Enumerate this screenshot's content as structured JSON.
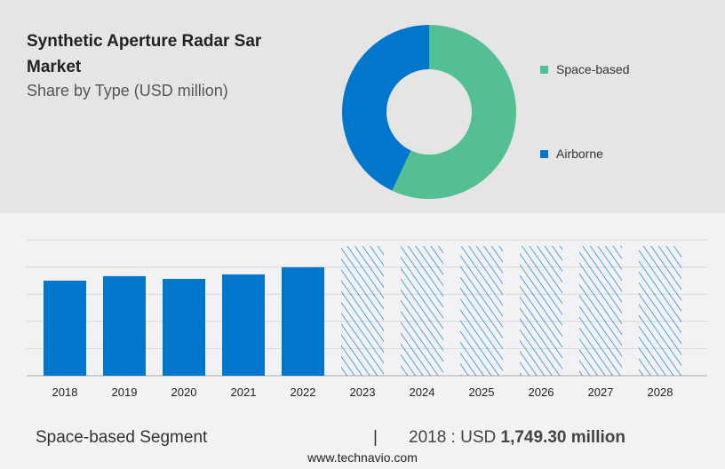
{
  "title": "Synthetic Aperture Radar Sar Market",
  "subtitle": "Share by Type (USD million)",
  "chart_data": [
    {
      "type": "pie",
      "donut": true,
      "categories": [
        "Space-based",
        "Airborne"
      ],
      "values": [
        57,
        43
      ],
      "colors": [
        "#55bf94",
        "#0077cc"
      ],
      "legend_position": "right"
    },
    {
      "type": "bar",
      "categories": [
        "2018",
        "2019",
        "2020",
        "2021",
        "2022",
        "2023",
        "2024",
        "2025",
        "2026",
        "2027",
        "2028"
      ],
      "series": [
        {
          "values": [
            1749.3,
            1831,
            1782,
            1864,
            1995,
            null,
            null,
            null,
            null,
            null,
            null
          ]
        }
      ],
      "forecast_categories": [
        "2023",
        "2024",
        "2025",
        "2026",
        "2027",
        "2028"
      ],
      "ylim": [
        0,
        2500
      ],
      "grid": true,
      "color": "#0077cc"
    }
  ],
  "footer": {
    "segment": "Space-based Segment",
    "separator": "|",
    "year_label": "2018 : USD ",
    "value": "1,749.30 million"
  },
  "website": "www.technavio.com"
}
